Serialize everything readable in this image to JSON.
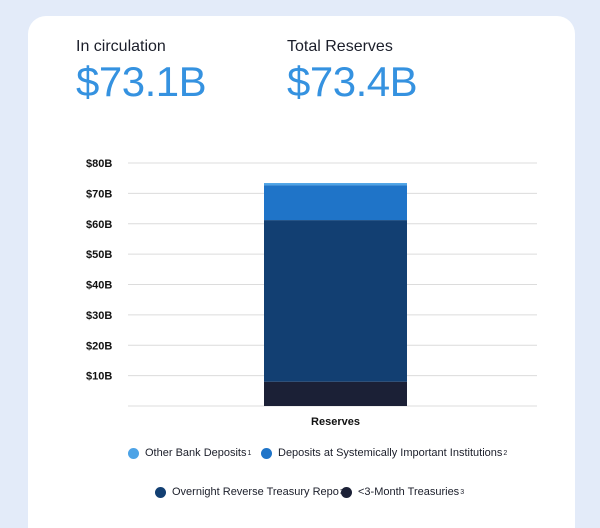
{
  "stats": {
    "circulation_label": "In circulation",
    "circulation_value": "$73.1B",
    "reserves_label": "Total Reserves",
    "reserves_value": "$73.4B"
  },
  "colors": {
    "other_bank_deposits": "#4da3e6",
    "deposits_sii": "#1f74c8",
    "overnight_repo": "#123f72",
    "treasuries": "#1b2036",
    "accent": "#3592e0"
  },
  "legend": [
    {
      "label": "Other Bank Deposits",
      "sup": "1"
    },
    {
      "label": "Deposits at Systemically Important Institutions",
      "sup": "2"
    },
    {
      "label": "Overnight Reverse Treasury Repo",
      "sup": "3"
    },
    {
      "label": "<3-Month Treasuries",
      "sup": "3"
    }
  ],
  "chart_data": {
    "type": "bar",
    "stacked": true,
    "categories": [
      "Reserves"
    ],
    "series": [
      {
        "name": "<3-Month Treasuries",
        "values": [
          8.0
        ]
      },
      {
        "name": "Overnight Reverse Treasury Repo",
        "values": [
          53.2
        ]
      },
      {
        "name": "Deposits at Systemically Important Institutions",
        "values": [
          11.5
        ]
      },
      {
        "name": "Other Bank Deposits",
        "values": [
          0.7
        ]
      }
    ],
    "ylim": [
      0,
      80
    ],
    "yticks": [
      10,
      20,
      30,
      40,
      50,
      60,
      70,
      80
    ],
    "ytick_labels": [
      "$10B",
      "$20B",
      "$30B",
      "$40B",
      "$50B",
      "$60B",
      "$70B",
      "$80B"
    ],
    "grid": true,
    "legend_position": "bottom"
  }
}
